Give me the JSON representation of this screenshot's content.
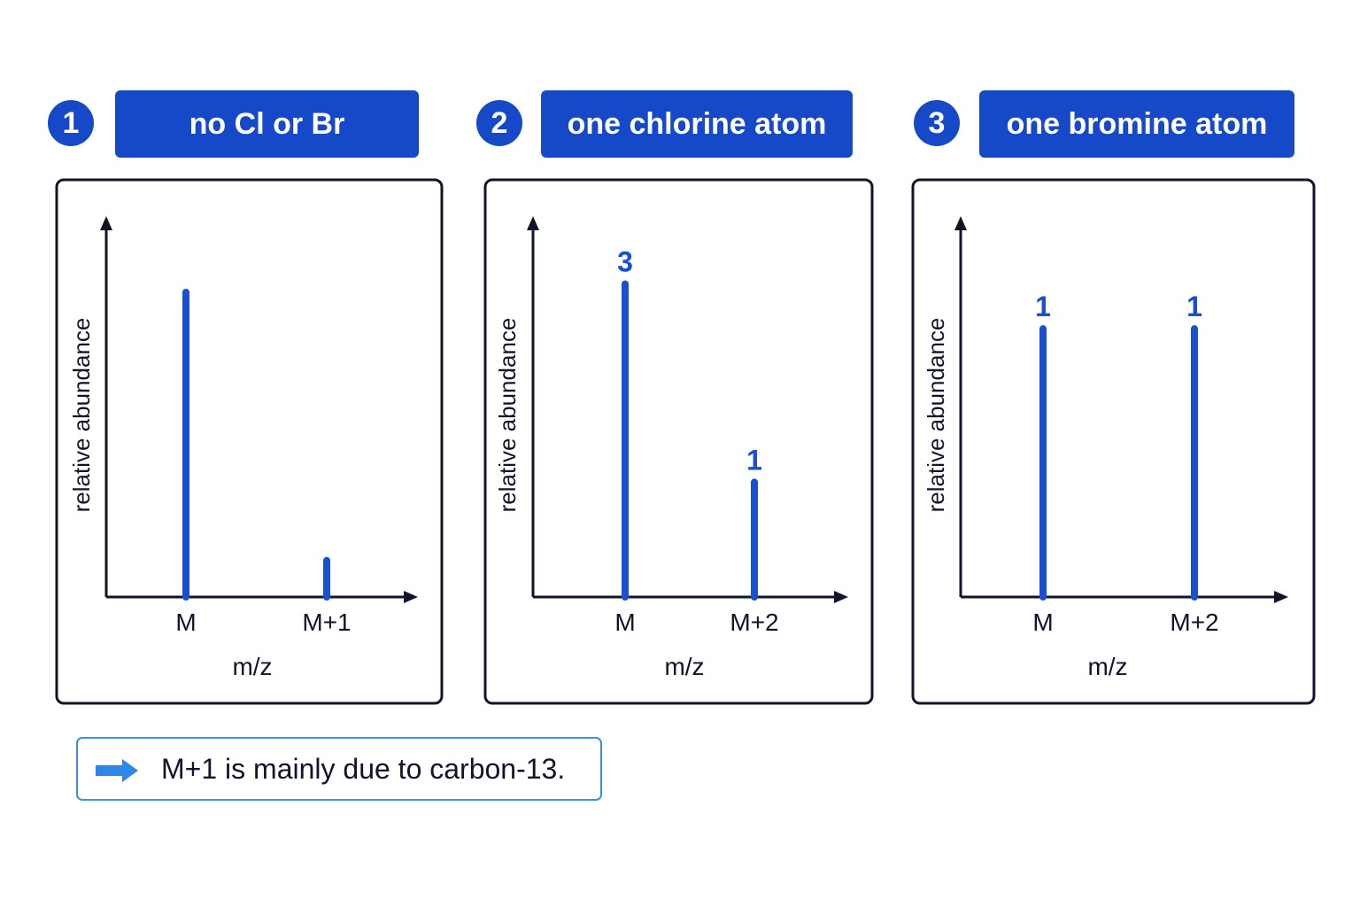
{
  "panels": [
    {
      "number": "1",
      "title": "no Cl or Br"
    },
    {
      "number": "2",
      "title": "one chlorine atom"
    },
    {
      "number": "3",
      "title": "one bromine atom"
    }
  ],
  "chart_data": [
    {
      "type": "bar",
      "title": "no Cl or Br",
      "xlabel": "m/z",
      "ylabel": "relative abundance",
      "categories": [
        "M",
        "M+1"
      ],
      "values": [
        100,
        12
      ],
      "data_labels": [
        "",
        ""
      ],
      "ylim": [
        0,
        125
      ],
      "grid": false
    },
    {
      "type": "bar",
      "title": "one chlorine atom",
      "xlabel": "m/z",
      "ylabel": "relative abundance",
      "categories": [
        "M",
        "M+2"
      ],
      "values": [
        3,
        1.1
      ],
      "data_labels": [
        "3",
        "1"
      ],
      "ylim": [
        0,
        3.65
      ],
      "grid": false
    },
    {
      "type": "bar",
      "title": "one bromine atom",
      "xlabel": "m/z",
      "ylabel": "relative abundance",
      "categories": [
        "M",
        "M+2"
      ],
      "values": [
        1,
        1
      ],
      "data_labels": [
        "1",
        "1"
      ],
      "ylim": [
        0,
        1.42
      ],
      "grid": false
    }
  ],
  "note": {
    "icon": "arrow-right-icon",
    "text": "M+1 is mainly due to carbon-13."
  },
  "colors": {
    "accent": "#1649c7",
    "bar": "#1a4fd0",
    "axis": "#10152a",
    "note_border": "#3a8fe6",
    "note_arrow": "#2e86e8"
  }
}
